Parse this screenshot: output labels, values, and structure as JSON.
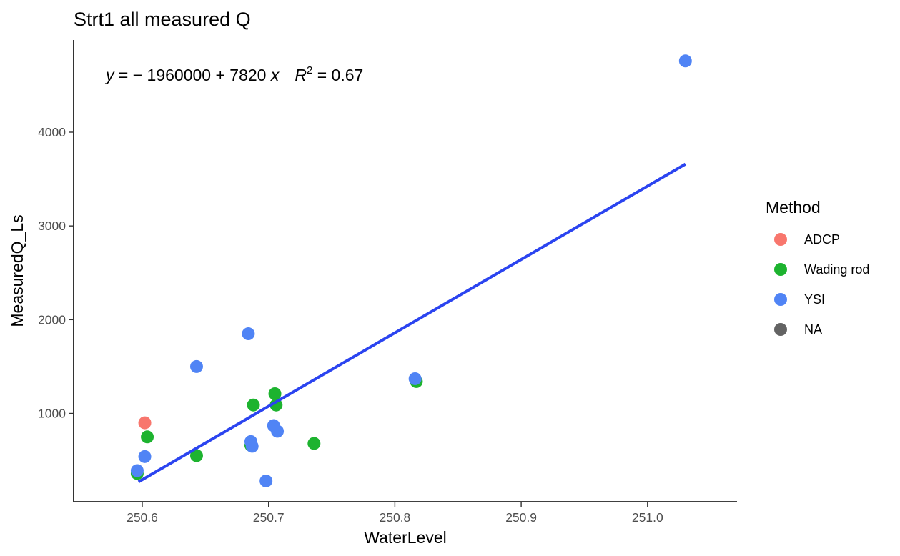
{
  "chart_data": {
    "type": "scatter",
    "title": "Strt1 all measured Q",
    "xlabel": "WaterLevel",
    "ylabel": "MeasuredQ_Ls",
    "xlim": [
      250.553,
      251.055
    ],
    "ylim": [
      60,
      4900
    ],
    "x_ticks": [
      250.6,
      250.7,
      250.8,
      250.9,
      251.0
    ],
    "x_tick_labels": [
      "250.6",
      "250.7",
      "250.8",
      "250.9",
      "251.0"
    ],
    "y_ticks": [
      1000,
      2000,
      3000,
      4000
    ],
    "y_tick_labels": [
      "1000",
      "2000",
      "3000",
      "4000"
    ],
    "grid": false,
    "legend": {
      "title": "Method",
      "placement": "right",
      "entries": [
        {
          "label": "ADCP",
          "color": "#F8766D"
        },
        {
          "label": "Wading rod",
          "color": "#1DB32F"
        },
        {
          "label": "YSI",
          "color": "#5084F5"
        },
        {
          "label": "NA",
          "color": "#636363"
        }
      ]
    },
    "equation": {
      "y": "y",
      "eq": " = − 1960000 + 7820 ",
      "x": "x",
      "r": "R",
      "sup": "2",
      "val": " = 0.67"
    },
    "fit_line": {
      "x": [
        250.597,
        251.03
      ],
      "y": [
        270,
        3660
      ],
      "color": "#2B44F0"
    },
    "series": [
      {
        "name": "ADCP",
        "color": "#F8766D",
        "points": [
          {
            "x": 250.602,
            "y": 900
          }
        ]
      },
      {
        "name": "Wading rod",
        "color": "#1DB32F",
        "points": [
          {
            "x": 250.596,
            "y": 360
          },
          {
            "x": 250.604,
            "y": 750
          },
          {
            "x": 250.643,
            "y": 550
          },
          {
            "x": 250.686,
            "y": 660
          },
          {
            "x": 250.688,
            "y": 1090
          },
          {
            "x": 250.705,
            "y": 1210
          },
          {
            "x": 250.706,
            "y": 1090
          },
          {
            "x": 250.736,
            "y": 680
          },
          {
            "x": 250.817,
            "y": 1340
          }
        ]
      },
      {
        "name": "YSI",
        "color": "#5084F5",
        "points": [
          {
            "x": 250.596,
            "y": 390
          },
          {
            "x": 250.602,
            "y": 540
          },
          {
            "x": 250.643,
            "y": 1500
          },
          {
            "x": 250.684,
            "y": 1850
          },
          {
            "x": 250.686,
            "y": 700
          },
          {
            "x": 250.687,
            "y": 650
          },
          {
            "x": 250.698,
            "y": 280
          },
          {
            "x": 250.704,
            "y": 870
          },
          {
            "x": 250.707,
            "y": 810
          },
          {
            "x": 250.816,
            "y": 1370
          },
          {
            "x": 251.03,
            "y": 4760
          }
        ]
      }
    ]
  }
}
